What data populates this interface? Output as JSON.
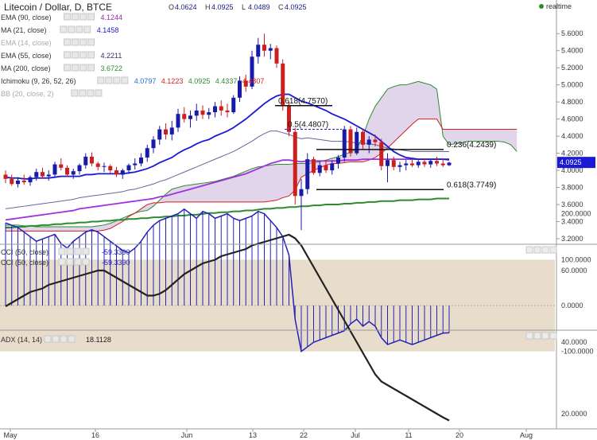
{
  "header": {
    "title": "Litecoin / Dollar, D, BTCE",
    "ohlc": [
      {
        "k": "O",
        "v": "4.0624"
      },
      {
        "k": "H",
        "v": "4.0925"
      },
      {
        "k": "L",
        "v": "4.0489"
      },
      {
        "k": "C",
        "v": "4.0925"
      }
    ],
    "realtime_label": "realtime"
  },
  "legend_main": [
    {
      "label": "EMA (90, close)",
      "values": [
        "4.1244"
      ],
      "color": "#9c27b0"
    },
    {
      "label": "MA (21, close)",
      "values": [
        "4.1458"
      ],
      "color": "#1a1ad6"
    },
    {
      "label": "EMA (14, close)",
      "values": [],
      "color": "#bbbbbb"
    },
    {
      "label": "EMA (55, close)",
      "values": [
        "4.2211"
      ],
      "color": "#333366"
    },
    {
      "label": "MA (200, close)",
      "values": [
        "3.6722"
      ],
      "color": "#2e8b2e"
    },
    {
      "label": "Ichimoku (9, 26, 52, 26)",
      "values": [
        "4.0797",
        "4.1223",
        "4.0925",
        "4.4337",
        "4.4807"
      ],
      "colors": [
        "#1a6fd6",
        "#d42020",
        "#2e8b2e",
        "#2e8b2e",
        "#d42020"
      ]
    },
    {
      "label": "BB (20, close, 2)",
      "values": [],
      "color": "#bbbbbb"
    }
  ],
  "legend_cci": [
    {
      "label": "CCI (50, close)",
      "value": "-59.3390"
    },
    {
      "label": "CCI (50, close)",
      "value": "-59.3390"
    }
  ],
  "legend_adx": {
    "label": "ADX (14, 14)",
    "value": "18.1128"
  },
  "current_price_label": "4.0925",
  "colors": {
    "up": "#1a1aaa",
    "down": "#cc1f1f",
    "ma21": "#1a1ad6",
    "ema90": "#a030e0",
    "ema55": "#666699",
    "ma200": "#2e8b2e",
    "cloud": "#c9b3dd",
    "senkouA": "#2e8b2e",
    "senkouB": "#d42020",
    "cci": "#2222bb",
    "cci_band": "#e8dccb",
    "adx": "#222222",
    "fib": "#111111",
    "fib_dashed": "#2222cc"
  },
  "chart_data": [
    {
      "type": "candlestick",
      "x_ticks": [
        "May",
        "16",
        "Jun",
        "13",
        "22",
        "Jul",
        "11",
        "20",
        "Aug"
      ],
      "y_ticks": [
        "3.2000",
        "3.4000",
        "3.6000",
        "3.8000",
        "4.0000",
        "4.2000",
        "4.4000",
        "4.6000",
        "4.8000",
        "5.0000",
        "5.2000",
        "5.4000",
        "5.6000"
      ],
      "ylim": [
        3.2,
        5.7
      ],
      "candles": [
        [
          3.95,
          4.0,
          3.85,
          3.9
        ],
        [
          3.9,
          3.95,
          3.82,
          3.84
        ],
        [
          3.84,
          3.92,
          3.8,
          3.88
        ],
        [
          3.88,
          3.95,
          3.83,
          3.86
        ],
        [
          3.86,
          3.94,
          3.82,
          3.92
        ],
        [
          3.92,
          4.02,
          3.88,
          3.98
        ],
        [
          3.98,
          4.03,
          3.9,
          3.93
        ],
        [
          3.93,
          4.0,
          3.88,
          3.95
        ],
        [
          3.95,
          4.1,
          3.92,
          4.07
        ],
        [
          4.07,
          4.14,
          4.0,
          4.03
        ],
        [
          4.03,
          4.06,
          3.92,
          3.95
        ],
        [
          3.95,
          4.02,
          3.9,
          3.99
        ],
        [
          3.99,
          4.08,
          3.95,
          4.06
        ],
        [
          4.06,
          4.2,
          4.02,
          4.16
        ],
        [
          4.16,
          4.21,
          4.05,
          4.08
        ],
        [
          4.08,
          4.1,
          4.0,
          4.04
        ],
        [
          4.04,
          4.09,
          3.98,
          4.05
        ],
        [
          4.05,
          4.07,
          3.97,
          4.0
        ],
        [
          4.0,
          4.04,
          3.92,
          3.95
        ],
        [
          3.95,
          4.02,
          3.9,
          4.0
        ],
        [
          4.0,
          4.08,
          3.96,
          4.06
        ],
        [
          4.06,
          4.14,
          4.01,
          4.08
        ],
        [
          4.08,
          4.2,
          4.05,
          4.15
        ],
        [
          4.15,
          4.3,
          4.1,
          4.26
        ],
        [
          4.26,
          4.4,
          4.2,
          4.36
        ],
        [
          4.36,
          4.52,
          4.3,
          4.48
        ],
        [
          4.48,
          4.55,
          4.36,
          4.42
        ],
        [
          4.42,
          4.58,
          4.35,
          4.5
        ],
        [
          4.5,
          4.72,
          4.45,
          4.66
        ],
        [
          4.66,
          4.74,
          4.56,
          4.6
        ],
        [
          4.6,
          4.7,
          4.5,
          4.64
        ],
        [
          4.64,
          4.78,
          4.58,
          4.7
        ],
        [
          4.7,
          4.76,
          4.6,
          4.65
        ],
        [
          4.65,
          4.73,
          4.6,
          4.68
        ],
        [
          4.68,
          4.8,
          4.62,
          4.75
        ],
        [
          4.75,
          4.82,
          4.64,
          4.7
        ],
        [
          4.7,
          4.78,
          4.62,
          4.68
        ],
        [
          4.68,
          4.88,
          4.66,
          4.85
        ],
        [
          4.85,
          5.1,
          4.8,
          5.05
        ],
        [
          5.05,
          5.12,
          4.92,
          4.98
        ],
        [
          4.98,
          5.4,
          4.95,
          5.33
        ],
        [
          5.33,
          5.55,
          5.25,
          5.47
        ],
        [
          5.47,
          5.6,
          5.33,
          5.4
        ],
        [
          5.4,
          5.48,
          5.3,
          5.43
        ],
        [
          5.43,
          5.46,
          5.2,
          5.25
        ],
        [
          5.25,
          5.3,
          4.7,
          4.75
        ],
        [
          4.75,
          4.8,
          4.4,
          4.45
        ],
        [
          4.45,
          4.5,
          3.6,
          3.7
        ],
        [
          3.7,
          3.9,
          3.3,
          3.78
        ],
        [
          3.78,
          4.2,
          3.72,
          4.13
        ],
        [
          4.13,
          4.16,
          3.95,
          3.97
        ],
        [
          3.97,
          4.1,
          3.93,
          4.06
        ],
        [
          4.06,
          4.12,
          3.97,
          4.0
        ],
        [
          4.0,
          4.12,
          3.95,
          4.08
        ],
        [
          4.08,
          4.18,
          4.02,
          4.15
        ],
        [
          4.15,
          4.52,
          4.1,
          4.48
        ],
        [
          4.48,
          4.52,
          4.16,
          4.2
        ],
        [
          4.2,
          4.5,
          4.18,
          4.45
        ],
        [
          4.45,
          4.48,
          4.25,
          4.3
        ],
        [
          4.3,
          4.4,
          4.2,
          4.36
        ],
        [
          4.36,
          4.42,
          4.28,
          4.33
        ],
        [
          4.33,
          4.37,
          4.0,
          4.05
        ],
        [
          4.05,
          4.2,
          3.86,
          4.12
        ],
        [
          4.12,
          4.16,
          4.0,
          4.04
        ],
        [
          4.04,
          4.1,
          3.98,
          4.06
        ],
        [
          4.06,
          4.12,
          4.0,
          4.08
        ],
        [
          4.08,
          4.14,
          4.04,
          4.06
        ],
        [
          4.06,
          4.12,
          4.03,
          4.1
        ],
        [
          4.1,
          4.14,
          4.04,
          4.07
        ],
        [
          4.07,
          4.13,
          4.03,
          4.11
        ],
        [
          4.11,
          4.16,
          4.05,
          4.08
        ],
        [
          4.08,
          4.13,
          4.04,
          4.06
        ],
        [
          4.06,
          4.1,
          4.05,
          4.09
        ]
      ],
      "ma21": [
        3.92,
        3.91,
        3.91,
        3.9,
        3.9,
        3.91,
        3.91,
        3.91,
        3.92,
        3.93,
        3.93,
        3.93,
        3.93,
        3.95,
        3.95,
        3.96,
        3.96,
        3.96,
        3.96,
        3.96,
        3.97,
        3.98,
        4.0,
        4.02,
        4.05,
        4.09,
        4.12,
        4.15,
        4.2,
        4.24,
        4.27,
        4.31,
        4.34,
        4.36,
        4.4,
        4.43,
        4.46,
        4.5,
        4.55,
        4.6,
        4.66,
        4.72,
        4.78,
        4.83,
        4.87,
        4.89,
        4.89,
        4.85,
        4.81,
        4.79,
        4.76,
        4.73,
        4.7,
        4.66,
        4.63,
        4.6,
        4.56,
        4.52,
        4.48,
        4.44,
        4.4,
        4.34,
        4.28,
        4.22,
        4.18,
        4.15,
        4.14,
        4.13,
        4.13,
        4.13,
        4.13,
        4.13,
        4.13
      ],
      "ema90": [
        3.42,
        3.43,
        3.44,
        3.45,
        3.46,
        3.47,
        3.48,
        3.49,
        3.5,
        3.51,
        3.52,
        3.53,
        3.55,
        3.56,
        3.57,
        3.58,
        3.59,
        3.6,
        3.61,
        3.62,
        3.63,
        3.64,
        3.65,
        3.66,
        3.67,
        3.69,
        3.7,
        3.72,
        3.74,
        3.76,
        3.78,
        3.8,
        3.82,
        3.84,
        3.86,
        3.88,
        3.9,
        3.92,
        3.94,
        3.96,
        3.99,
        4.02,
        4.05,
        4.08,
        4.1,
        4.12,
        4.12,
        4.11,
        4.1,
        4.11,
        4.11,
        4.11,
        4.11,
        4.11,
        4.11,
        4.12,
        4.12,
        4.12,
        4.13,
        4.13,
        4.13,
        4.13,
        4.13,
        4.13,
        4.13,
        4.13,
        4.13,
        4.13,
        4.13,
        4.13,
        4.13,
        4.13,
        4.12
      ],
      "ema55": [
        3.55,
        3.56,
        3.57,
        3.58,
        3.59,
        3.6,
        3.61,
        3.62,
        3.63,
        3.64,
        3.65,
        3.66,
        3.68,
        3.69,
        3.7,
        3.71,
        3.72,
        3.73,
        3.74,
        3.75,
        3.77,
        3.78,
        3.8,
        3.82,
        3.84,
        3.87,
        3.89,
        3.92,
        3.95,
        3.98,
        4.01,
        4.04,
        4.07,
        4.1,
        4.13,
        4.16,
        4.19,
        4.22,
        4.26,
        4.3,
        4.34,
        4.39,
        4.43,
        4.46,
        4.46,
        4.44,
        4.42,
        4.39,
        4.37,
        4.38,
        4.37,
        4.36,
        4.35,
        4.34,
        4.34,
        4.34,
        4.33,
        4.32,
        4.32,
        4.31,
        4.3,
        4.28,
        4.26,
        4.25,
        4.24,
        4.23,
        4.22,
        4.22,
        4.22,
        4.22,
        4.22,
        4.22,
        4.22
      ],
      "ma200": [
        3.33,
        3.33,
        3.34,
        3.34,
        3.35,
        3.35,
        3.36,
        3.36,
        3.37,
        3.37,
        3.38,
        3.38,
        3.39,
        3.39,
        3.4,
        3.4,
        3.41,
        3.41,
        3.42,
        3.42,
        3.43,
        3.43,
        3.44,
        3.44,
        3.45,
        3.45,
        3.46,
        3.46,
        3.47,
        3.47,
        3.48,
        3.48,
        3.49,
        3.5,
        3.5,
        3.51,
        3.51,
        3.52,
        3.52,
        3.53,
        3.53,
        3.54,
        3.55,
        3.55,
        3.56,
        3.56,
        3.57,
        3.57,
        3.58,
        3.58,
        3.59,
        3.59,
        3.6,
        3.6,
        3.6,
        3.61,
        3.61,
        3.62,
        3.62,
        3.63,
        3.63,
        3.64,
        3.64,
        3.64,
        3.65,
        3.65,
        3.65,
        3.66,
        3.66,
        3.66,
        3.67,
        3.67,
        3.67
      ],
      "senkou_a": [
        3.36,
        3.36,
        3.36,
        3.35,
        3.35,
        3.34,
        3.34,
        3.34,
        3.34,
        3.34,
        3.34,
        3.34,
        3.34,
        3.34,
        3.34,
        3.35,
        3.36,
        3.38,
        3.41,
        3.44,
        3.47,
        3.5,
        3.52,
        3.53,
        3.58,
        3.65,
        3.72,
        3.78,
        3.8,
        3.82,
        3.83,
        3.84,
        3.85,
        3.86,
        3.87,
        3.89,
        3.91,
        3.93,
        3.96,
        3.99,
        4.02,
        4.04,
        4.05,
        4.06,
        4.07,
        4.07,
        4.07,
        4.08,
        4.08,
        4.08,
        4.09,
        4.1,
        4.12,
        4.14,
        4.16,
        4.19,
        4.21,
        4.25,
        4.4,
        4.6,
        4.75,
        4.85,
        4.95,
        4.98,
        5.0,
        5.0,
        5.02,
        5.04,
        5.02,
        5.0,
        4.95,
        4.4,
        4.3,
        4.31,
        4.32,
        4.34,
        4.34,
        4.34,
        4.34,
        4.34,
        4.34,
        4.33,
        4.3,
        4.22
      ],
      "senkou_b": [
        3.29,
        3.29,
        3.29,
        3.29,
        3.29,
        3.29,
        3.29,
        3.29,
        3.29,
        3.29,
        3.29,
        3.29,
        3.29,
        3.29,
        3.29,
        3.29,
        3.3,
        3.32,
        3.36,
        3.4,
        3.46,
        3.5,
        3.55,
        3.6,
        3.62,
        3.62,
        3.63,
        3.63,
        3.63,
        3.63,
        3.63,
        3.63,
        3.63,
        3.63,
        3.63,
        3.63,
        3.63,
        3.63,
        3.63,
        3.63,
        3.63,
        3.63,
        3.63,
        3.64,
        3.65,
        3.68,
        3.7,
        3.77,
        3.92,
        3.96,
        4.0,
        4.03,
        4.06,
        4.08,
        4.08,
        4.09,
        4.1,
        4.1,
        4.1,
        4.12,
        4.15,
        4.2,
        4.26,
        4.33,
        4.4,
        4.47,
        4.54,
        4.6,
        4.6,
        4.6,
        4.6,
        4.48,
        4.48,
        4.48,
        4.48,
        4.48,
        4.48,
        4.48,
        4.48,
        4.48,
        4.48,
        4.48,
        4.48,
        4.48
      ],
      "fib_levels": [
        {
          "label": "0.618(4.7570)",
          "value": 4.757,
          "style": "solid"
        },
        {
          "label": "0.5(4.4807)",
          "value": 4.4807,
          "style": "dashed"
        },
        {
          "label": "0.236(4.2439)",
          "value": 4.2439,
          "style": "solid"
        },
        {
          "label": "0.618(3.7749)",
          "value": 3.7749,
          "style": "solid"
        }
      ]
    },
    {
      "type": "bar",
      "title": "CCI (50, close)",
      "y_ticks": [
        "200.0000",
        "100.0000",
        "0.0000",
        "-100.0000"
      ],
      "ylim": [
        -110,
        235
      ],
      "band": [
        -100,
        100
      ],
      "values": [
        180,
        175,
        170,
        160,
        150,
        140,
        145,
        150,
        155,
        135,
        125,
        140,
        150,
        160,
        165,
        160,
        150,
        140,
        130,
        120,
        115,
        125,
        140,
        160,
        175,
        185,
        190,
        195,
        200,
        210,
        200,
        190,
        205,
        200,
        190,
        195,
        200,
        190,
        185,
        190,
        195,
        205,
        200,
        185,
        170,
        150,
        110,
        -30,
        -100,
        -90,
        -80,
        -75,
        -70,
        -65,
        -60,
        -55,
        -40,
        -30,
        -45,
        -35,
        -45,
        -70,
        -85,
        -80,
        -75,
        -80,
        -85,
        -80,
        -75,
        -70,
        -65,
        -60,
        -59.339
      ]
    },
    {
      "type": "line",
      "title": "ADX (14, 14)",
      "x_ticks": [
        "May",
        "16",
        "Jun",
        "13",
        "22",
        "Jul",
        "11",
        "20",
        "Aug"
      ],
      "y_ticks": [
        "60.0000",
        "40.0000",
        "20.0000"
      ],
      "ylim": [
        15,
        73
      ],
      "values": [
        50,
        51,
        52,
        53,
        54,
        54.5,
        55,
        56,
        56.5,
        57,
        57.5,
        58,
        58.5,
        59,
        59.5,
        60,
        60,
        59,
        58,
        57,
        56,
        55,
        54,
        53,
        53,
        53.5,
        54.5,
        56,
        57.5,
        59,
        60,
        61,
        62,
        62.5,
        63,
        64,
        64.5,
        65,
        65.5,
        66,
        67,
        67.5,
        68,
        68.5,
        69,
        69.5,
        70,
        69,
        67,
        64,
        61,
        58,
        55,
        52,
        49,
        46,
        43,
        40,
        37,
        34,
        31,
        29,
        28,
        27,
        26,
        25,
        24,
        23,
        22,
        21,
        20,
        19,
        18.11
      ]
    }
  ]
}
